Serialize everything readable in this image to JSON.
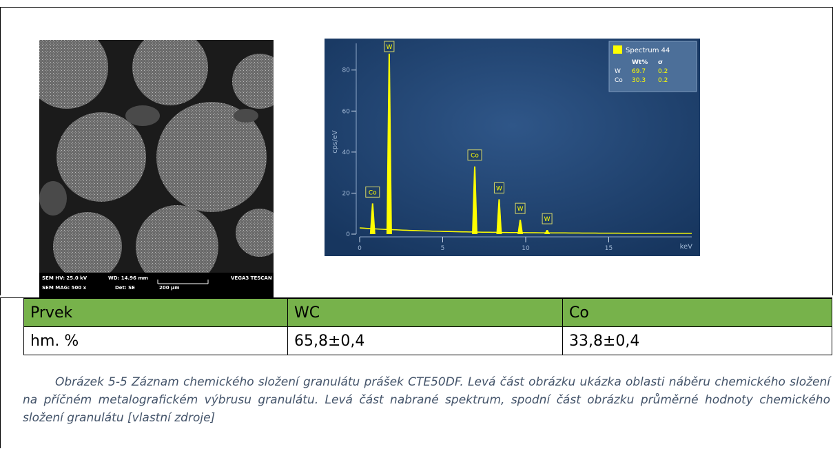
{
  "sem": {
    "hv": "SEM HV: 25.0 kV",
    "wd": "WD: 14.96 mm",
    "device": "VEGA3 TESCAN",
    "mag": "SEM MAG: 500 x",
    "det": "Det: SE",
    "scale": "200 μm"
  },
  "spectrum": {
    "type": "line",
    "y_label": "cps/eV",
    "x_label": "keV",
    "xlim": [
      0,
      20
    ],
    "ylim": [
      0,
      93
    ],
    "xticks": [
      0,
      5,
      10,
      15
    ],
    "yticks": [
      0,
      20,
      40,
      60,
      80
    ],
    "peaks": [
      {
        "label": "Co",
        "x": 0.78,
        "y": 15
      },
      {
        "label": "W",
        "x": 1.78,
        "y": 88
      },
      {
        "label": "Co",
        "x": 6.93,
        "y": 33
      },
      {
        "label": "W",
        "x": 8.4,
        "y": 17
      },
      {
        "label": "W",
        "x": 9.67,
        "y": 7
      },
      {
        "label": "W",
        "x": 11.29,
        "y": 2
      }
    ],
    "color": "#ffff00",
    "legend": {
      "title": "Spectrum 44",
      "columns": [
        "Wt%",
        "σ"
      ],
      "rows": [
        [
          "W",
          "69.7",
          "0.2"
        ],
        [
          "Co",
          "30.3",
          "0.2"
        ]
      ]
    }
  },
  "table": {
    "header": [
      "Prvek",
      "WC",
      "Co"
    ],
    "rows": [
      [
        "hm. %",
        "65,8±0,4",
        "33,8±0,4"
      ]
    ]
  },
  "caption": "Obrázek 5-5 Záznam chemického složení granulátu prášek CTE50DF. Levá část obrázku ukázka oblasti náběru chemického složení na příčném metalografickém výbrusu granulátu. Levá část nabrané spektrum, spodní část obrázku průměrné hodnoty chemického složení granulátu [vlastní zdroje]"
}
